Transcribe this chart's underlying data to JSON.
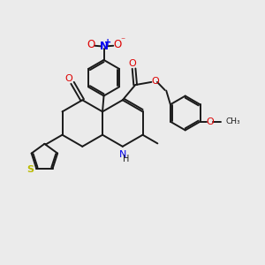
{
  "background_color": "#ebebeb",
  "bond_color": "#1a1a1a",
  "n_color": "#0000ee",
  "o_color": "#dd0000",
  "s_color": "#bbbb00",
  "figsize": [
    3.0,
    3.0
  ],
  "dpi": 100,
  "xlim": [
    0,
    10
  ],
  "ylim": [
    0,
    10
  ]
}
